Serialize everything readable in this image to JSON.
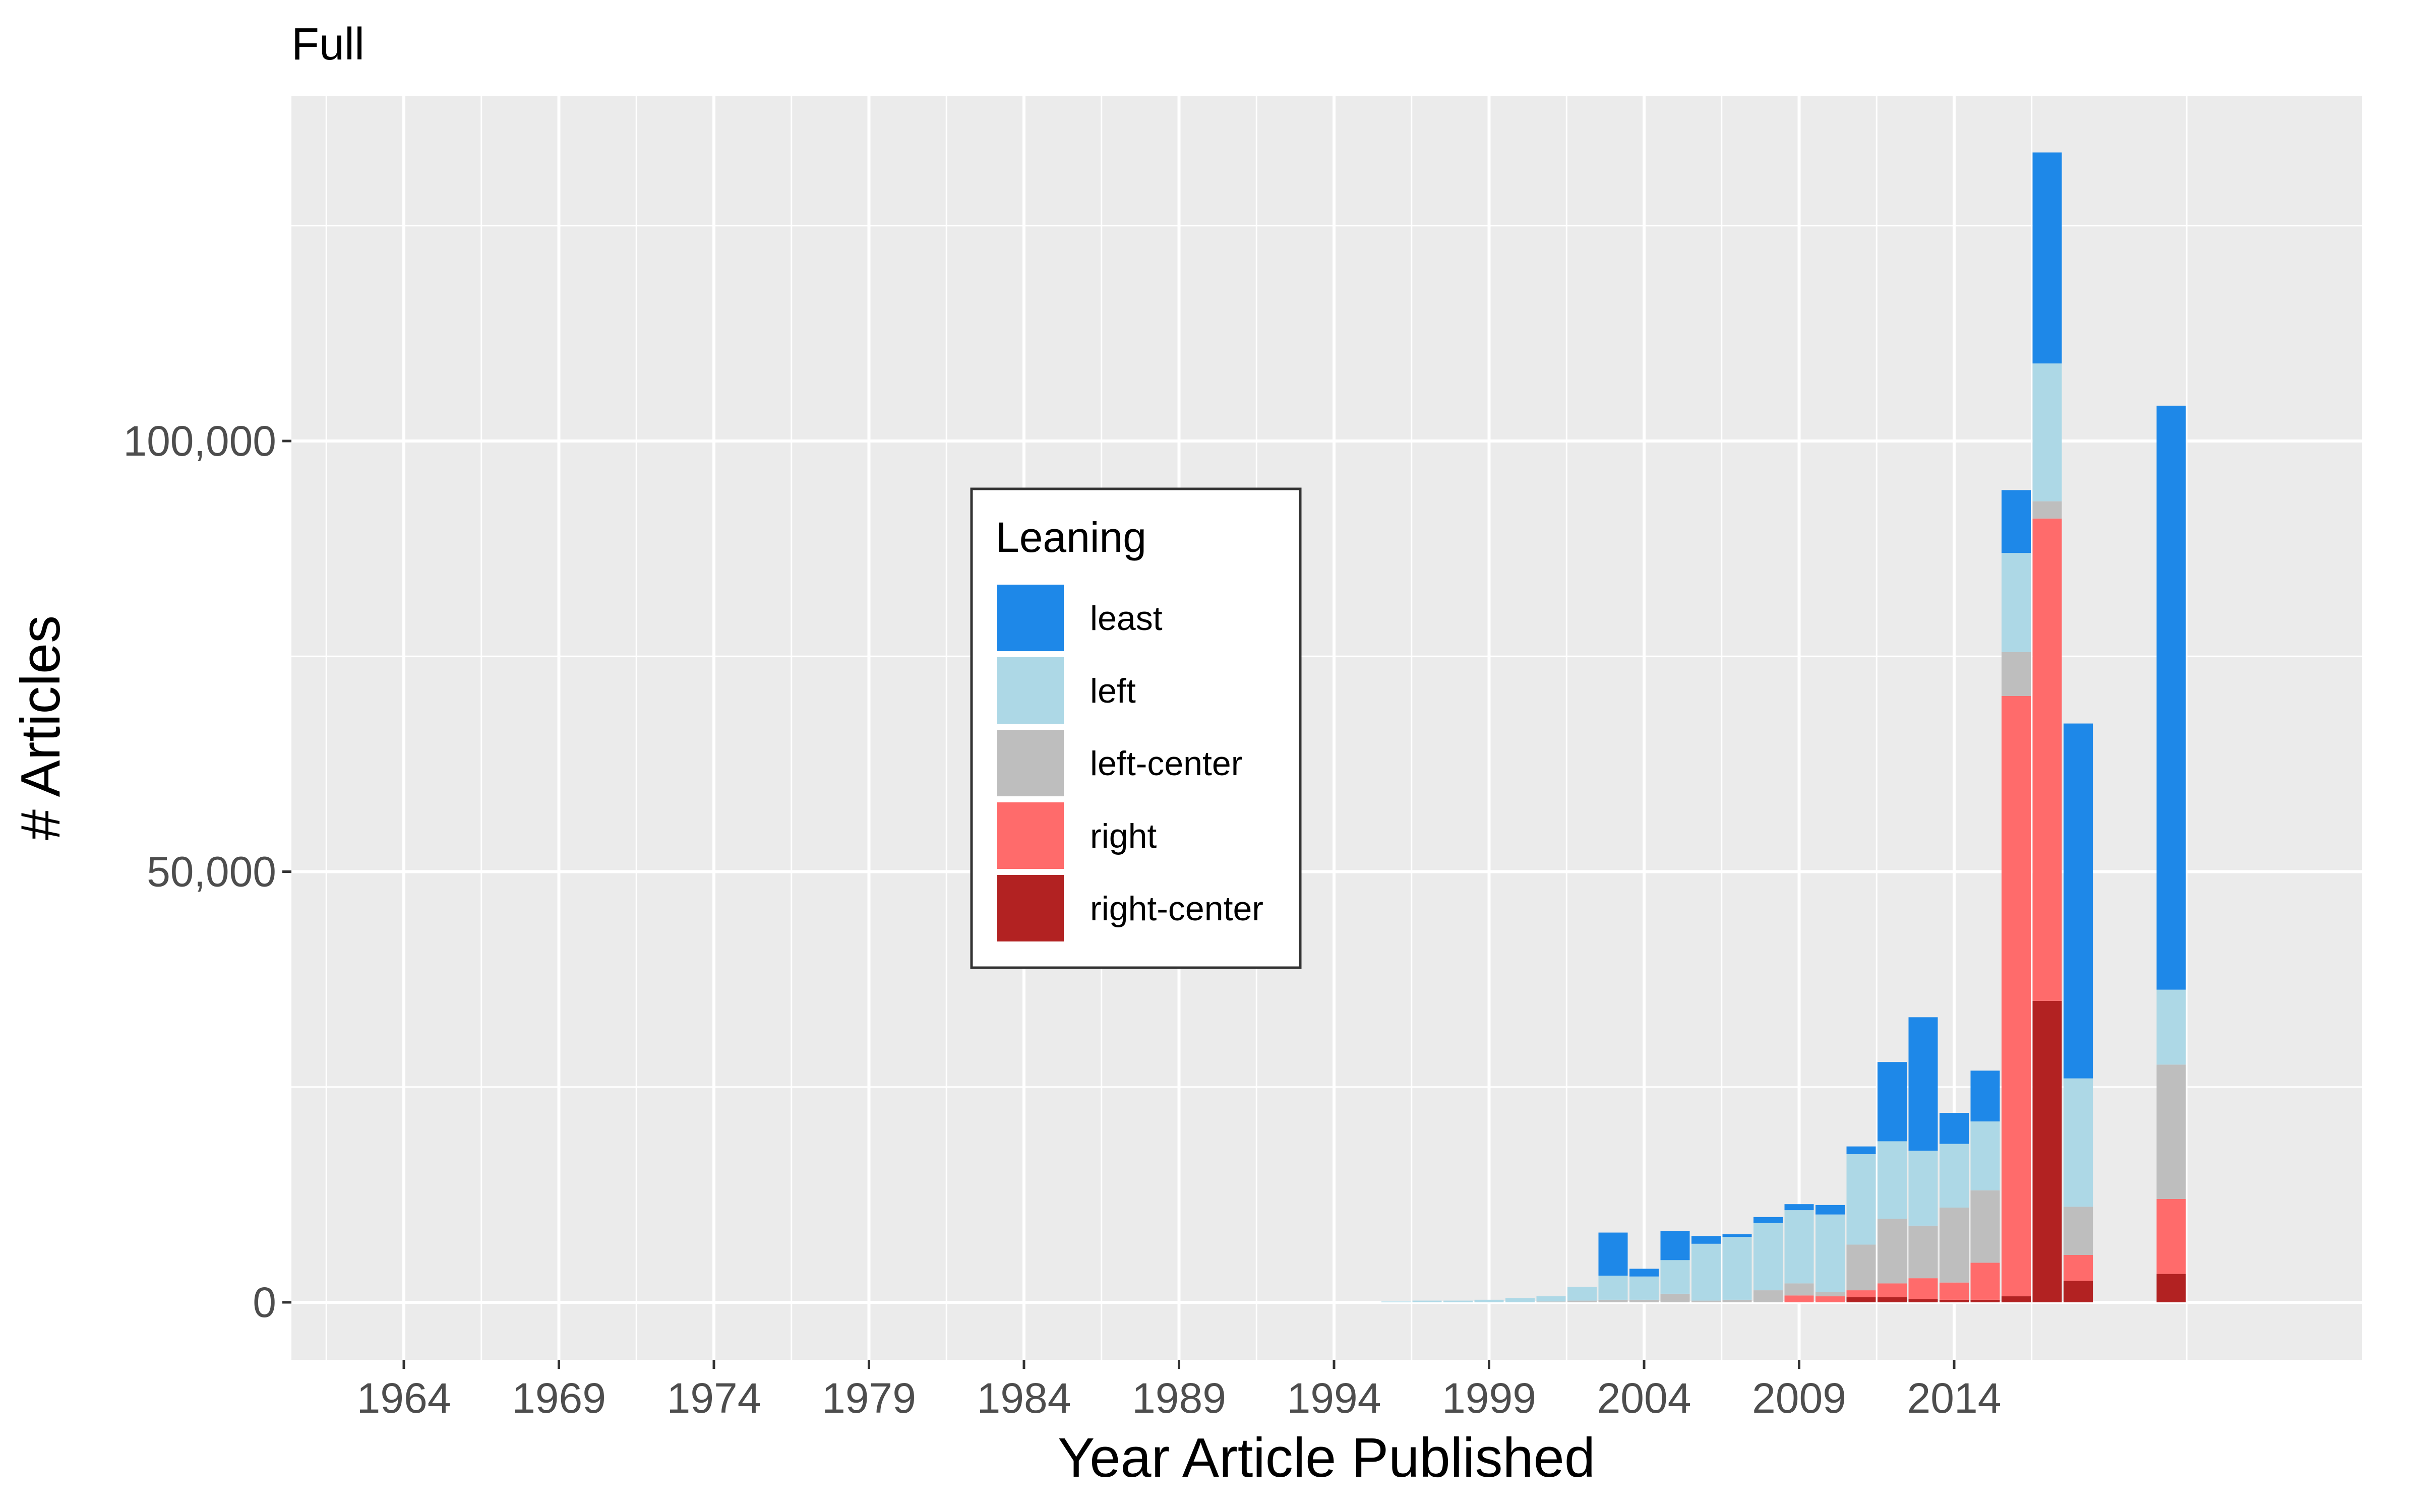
{
  "chart_data": {
    "type": "bar",
    "stacked": true,
    "title": "Full",
    "xlabel": "Year Article Published",
    "ylabel": "# Articles",
    "x_ticks": [
      1964,
      1969,
      1974,
      1979,
      1984,
      1989,
      1994,
      1999,
      2004,
      2009,
      2014
    ],
    "xlim": [
      1961.5,
      2025.5
    ],
    "y_ticks": [
      0,
      50000,
      100000
    ],
    "y_tick_labels": [
      "0",
      "50,000",
      "100,000"
    ],
    "ylim": [
      -6000,
      140000
    ],
    "grid": true,
    "legend": {
      "title": "Leaning",
      "placement": "inside-center-left",
      "entries": [
        "least",
        "left",
        "left-center",
        "right",
        "right-center"
      ]
    },
    "colors": {
      "background": "#ebebeb",
      "grid": "#ffffff",
      "least": "#1e88e8",
      "left": "#add8e6",
      "left-center": "#bebebe",
      "right": "#ff6b6b",
      "right-center": "#b22222"
    },
    "stack_order": [
      "right-center",
      "right",
      "left-center",
      "left",
      "least"
    ],
    "x": [
      1996,
      1997,
      1998,
      1999,
      2000,
      2001,
      2002,
      2003,
      2004,
      2005,
      2006,
      2007,
      2008,
      2009,
      2010,
      2011,
      2012,
      2013,
      2014,
      2015,
      2016,
      2017,
      2018,
      2021
    ],
    "series": [
      {
        "name": "right-center",
        "values": [
          0,
          0,
          0,
          0,
          0,
          0,
          0,
          0,
          0,
          0,
          0,
          0,
          0,
          0,
          0,
          600,
          600,
          400,
          300,
          300,
          700,
          35000,
          2500,
          3300
        ]
      },
      {
        "name": "right",
        "values": [
          0,
          0,
          0,
          0,
          0,
          0,
          0,
          0,
          0,
          0,
          0,
          0,
          0,
          800,
          700,
          800,
          1600,
          2400,
          2000,
          4300,
          69700,
          56000,
          3000,
          8700
        ]
      },
      {
        "name": "left-center",
        "values": [
          0,
          0,
          0,
          0,
          0,
          100,
          200,
          300,
          300,
          1000,
          200,
          300,
          1400,
          1400,
          500,
          5300,
          7500,
          6100,
          8700,
          8400,
          5100,
          2000,
          5600,
          15600
        ]
      },
      {
        "name": "left",
        "values": [
          100,
          200,
          200,
          300,
          500,
          600,
          1600,
          2800,
          2700,
          3900,
          6600,
          7300,
          7800,
          8500,
          9000,
          10500,
          9000,
          8700,
          7400,
          8000,
          11500,
          16000,
          14900,
          8700
        ]
      },
      {
        "name": "least",
        "values": [
          0,
          0,
          0,
          0,
          0,
          0,
          0,
          5000,
          900,
          3400,
          900,
          300,
          700,
          700,
          1100,
          900,
          9200,
          15500,
          3600,
          5900,
          7300,
          24500,
          41200,
          67800
        ]
      }
    ]
  }
}
